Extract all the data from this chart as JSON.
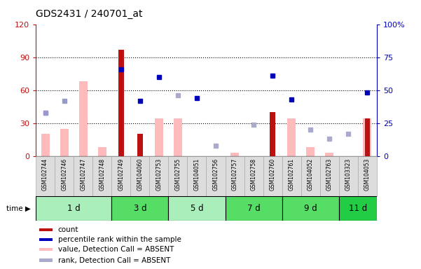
{
  "title": "GDS2431 / 240701_at",
  "samples": [
    "GSM102744",
    "GSM102746",
    "GSM102747",
    "GSM102748",
    "GSM102749",
    "GSM104060",
    "GSM102753",
    "GSM102755",
    "GSM104051",
    "GSM102756",
    "GSM102757",
    "GSM102758",
    "GSM102760",
    "GSM102761",
    "GSM104052",
    "GSM102763",
    "GSM103323",
    "GSM104053"
  ],
  "time_groups": [
    {
      "label": "1 d",
      "start": 0,
      "end": 4
    },
    {
      "label": "3 d",
      "start": 4,
      "end": 7
    },
    {
      "label": "5 d",
      "start": 7,
      "end": 10
    },
    {
      "label": "7 d",
      "start": 10,
      "end": 13
    },
    {
      "label": "9 d",
      "start": 13,
      "end": 16
    },
    {
      "label": "11 d",
      "start": 16,
      "end": 18
    }
  ],
  "group_colors": [
    "#aaeebb",
    "#55dd66",
    "#aaeebb",
    "#55dd66",
    "#55dd66",
    "#22cc44"
  ],
  "count_values": [
    0,
    0,
    0,
    0,
    97,
    20,
    0,
    0,
    0,
    0,
    0,
    0,
    40,
    0,
    0,
    0,
    0,
    34
  ],
  "count_color": "#bb1111",
  "percentile_rank": [
    33,
    42,
    0,
    0,
    66,
    42,
    60,
    0,
    44,
    0,
    0,
    0,
    61,
    43,
    0,
    0,
    0,
    48
  ],
  "percentile_is_present": [
    false,
    false,
    false,
    false,
    true,
    true,
    true,
    false,
    true,
    false,
    false,
    false,
    true,
    true,
    false,
    false,
    false,
    true
  ],
  "percentile_color_present": "#0000bb",
  "percentile_color_absent": "#9999cc",
  "value_absent": [
    20,
    25,
    68,
    8,
    0,
    0,
    34,
    34,
    0,
    0,
    3,
    0,
    0,
    34,
    8,
    3,
    0,
    34
  ],
  "value_absent_color": "#ffbbbb",
  "rank_absent": [
    33,
    0,
    0,
    0,
    0,
    0,
    0,
    46,
    0,
    8,
    0,
    24,
    0,
    0,
    20,
    13,
    17,
    0
  ],
  "rank_absent_color": "#aaaacc",
  "left_ylim": [
    0,
    120
  ],
  "left_yticks": [
    0,
    30,
    60,
    90,
    120
  ],
  "right_ylim": [
    0,
    100
  ],
  "right_yticks": [
    0,
    25,
    50,
    75,
    100
  ],
  "right_color": "#0000bb",
  "left_color": "#bb1111",
  "grid_lines": [
    30,
    60,
    90
  ],
  "legend_items": [
    {
      "label": "count",
      "color": "#bb1111"
    },
    {
      "label": "percentile rank within the sample",
      "color": "#0000bb"
    },
    {
      "label": "value, Detection Call = ABSENT",
      "color": "#ffbbbb"
    },
    {
      "label": "rank, Detection Call = ABSENT",
      "color": "#aaaacc"
    }
  ]
}
